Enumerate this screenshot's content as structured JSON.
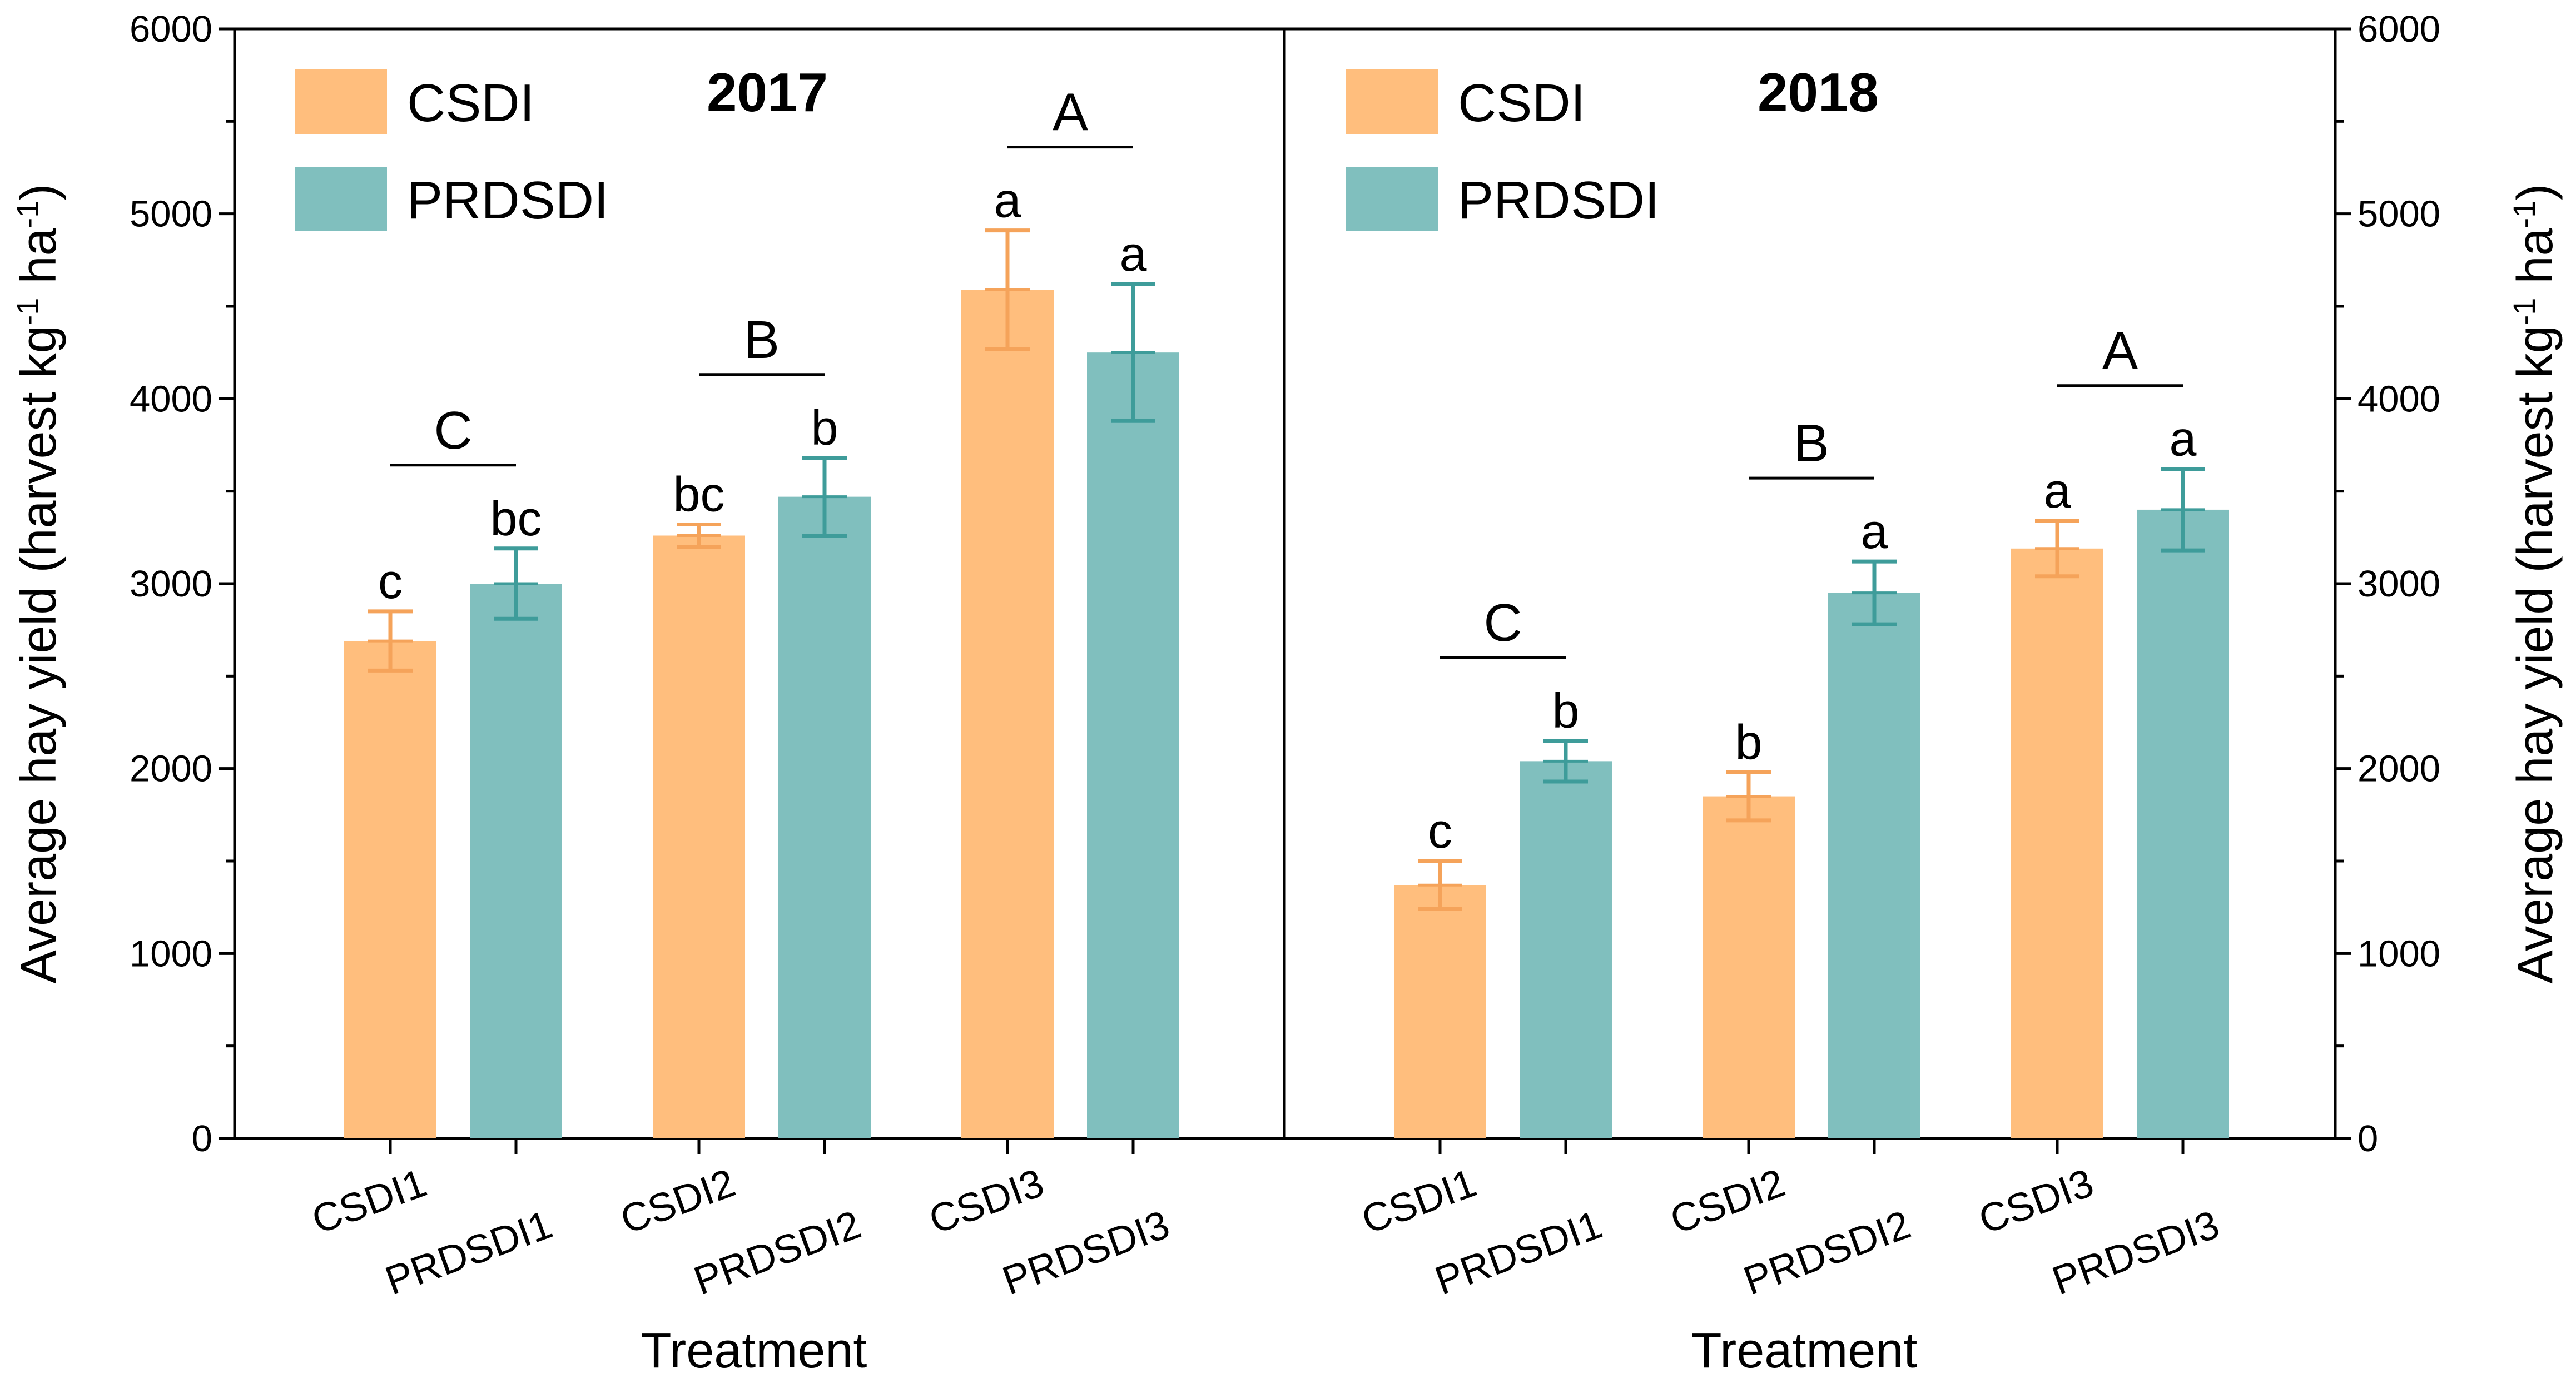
{
  "chart_data": {
    "type": "bar",
    "y_axis_label": "Average hay yield (harvest kg",
    "y_axis_unit_sup1": "-1",
    "y_axis_unit_mid": " ha",
    "y_axis_unit_sup2": "-1",
    "y_axis_label_close": ")",
    "x_axis_label": "Treatment",
    "ylim": [
      0,
      6000
    ],
    "yticks": [
      0,
      1000,
      2000,
      3000,
      4000,
      5000,
      6000
    ],
    "colors": {
      "CSDI": "#FFBE7D",
      "PRDSDI": "#80BFBE",
      "CSDI_err": "#F5A35A",
      "PRDSDI_err": "#3E9C9A"
    },
    "legend": [
      "CSDI",
      "PRDSDI"
    ],
    "panels": [
      {
        "title": "2017",
        "categories": [
          "CSDI1",
          "PRDSDI1",
          "CSDI2",
          "PRDSDI2",
          "CSDI3",
          "PRDSDI3"
        ],
        "series": [
          {
            "name": "CSDI",
            "categories": [
              "CSDI1",
              "CSDI2",
              "CSDI3"
            ],
            "values": [
              2690,
              3260,
              4590
            ],
            "errors": [
              160,
              60,
              320
            ],
            "letters": [
              "c",
              "bc",
              "a"
            ]
          },
          {
            "name": "PRDSDI",
            "categories": [
              "PRDSDI1",
              "PRDSDI2",
              "PRDSDI3"
            ],
            "values": [
              3000,
              3470,
              4250
            ],
            "errors": [
              190,
              210,
              370
            ],
            "letters": [
              "bc",
              "b",
              "a"
            ]
          }
        ],
        "group_letters": [
          "C",
          "B",
          "A"
        ]
      },
      {
        "title": "2018",
        "categories": [
          "CSDI1",
          "PRDSDI1",
          "CSDI2",
          "PRDSDI2",
          "CSDI3",
          "PRDSDI3"
        ],
        "series": [
          {
            "name": "CSDI",
            "categories": [
              "CSDI1",
              "CSDI2",
              "CSDI3"
            ],
            "values": [
              1370,
              1850,
              3190
            ],
            "errors": [
              130,
              130,
              150
            ],
            "letters": [
              "c",
              "b",
              "a"
            ]
          },
          {
            "name": "PRDSDI",
            "categories": [
              "PRDSDI1",
              "PRDSDI2",
              "PRDSDI3"
            ],
            "values": [
              2040,
              2950,
              3400
            ],
            "errors": [
              110,
              170,
              220
            ],
            "letters": [
              "b",
              "a",
              "a"
            ]
          }
        ],
        "group_letters": [
          "C",
          "B",
          "A"
        ]
      }
    ]
  }
}
